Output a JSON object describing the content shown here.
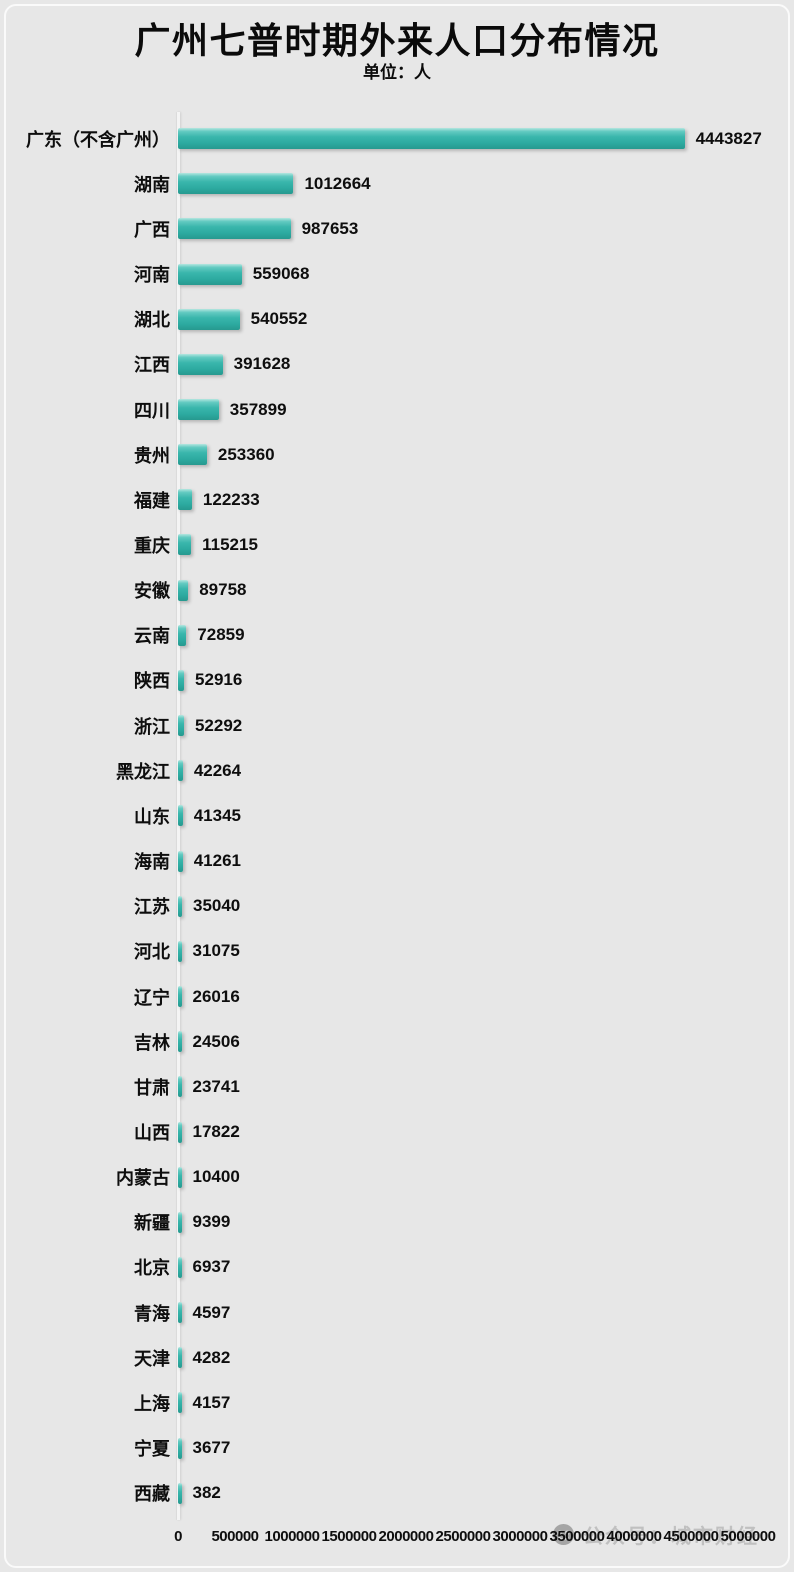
{
  "title": "广州七普时期外来人口分布情况",
  "subtitle": "单位：人",
  "chart_data": {
    "type": "bar",
    "orientation": "horizontal",
    "title": "广州七普时期外来人口分布情况",
    "subtitle": "单位：人",
    "categories": [
      "广东（不含广州）",
      "湖南",
      "广西",
      "河南",
      "湖北",
      "江西",
      "四川",
      "贵州",
      "福建",
      "重庆",
      "安徽",
      "云南",
      "陕西",
      "浙江",
      "黑龙江",
      "山东",
      "海南",
      "江苏",
      "河北",
      "辽宁",
      "吉林",
      "甘肃",
      "山西",
      "内蒙古",
      "新疆",
      "北京",
      "青海",
      "天津",
      "上海",
      "宁夏",
      "西藏"
    ],
    "values": [
      4443827,
      1012664,
      987653,
      559068,
      540552,
      391628,
      357899,
      253360,
      122233,
      115215,
      89758,
      72859,
      52916,
      52292,
      42264,
      41345,
      41261,
      35040,
      31075,
      26016,
      24506,
      23741,
      17822,
      10400,
      9399,
      6937,
      4597,
      4282,
      4157,
      3677,
      382
    ],
    "xlim": [
      0,
      5000000
    ],
    "x_ticks": [
      0,
      500000,
      1000000,
      1500000,
      2000000,
      2500000,
      3000000,
      3500000,
      4000000,
      4500000,
      5000000
    ],
    "value_labels": true,
    "grid": false,
    "legend": null,
    "bar_color": "#35b2a8"
  },
  "watermark": {
    "text": "公众号：城市财经",
    "icon": "account-logo-icon"
  },
  "colors": {
    "background": "#e7e7e7",
    "bar": "#35b2a8",
    "text": "#0e0e0e",
    "watermark": "#b3b3b3"
  }
}
